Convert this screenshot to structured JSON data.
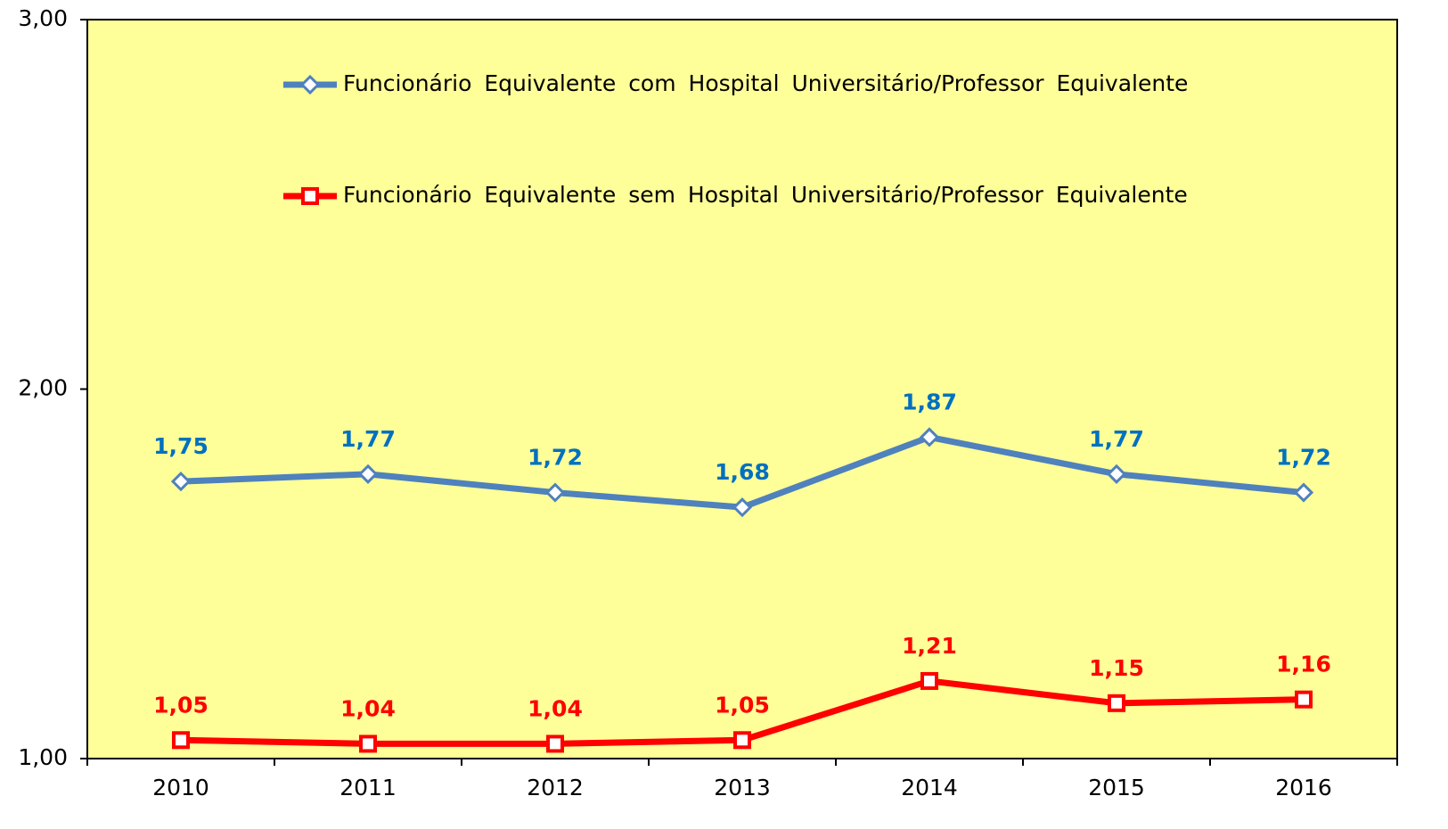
{
  "chart_data": {
    "type": "line",
    "categories": [
      "2010",
      "2011",
      "2012",
      "2013",
      "2014",
      "2015",
      "2016"
    ],
    "series": [
      {
        "name": "Funcionário Equivalente com Hospital Universitário/Professor Equivalente",
        "color": "#4f81bd",
        "label_color": "#0070c0",
        "marker": "diamond",
        "values": [
          1.75,
          1.77,
          1.72,
          1.68,
          1.87,
          1.77,
          1.72
        ],
        "value_labels": [
          "1,75",
          "1,77",
          "1,72",
          "1,68",
          "1,87",
          "1,77",
          "1,72"
        ]
      },
      {
        "name": "Funcionário Equivalente sem Hospital Universitário/Professor Equivalente",
        "color": "#ff0000",
        "label_color": "#ff0000",
        "marker": "square",
        "values": [
          1.05,
          1.04,
          1.04,
          1.05,
          1.21,
          1.15,
          1.16
        ],
        "value_labels": [
          "1,05",
          "1,04",
          "1,04",
          "1,05",
          "1,21",
          "1,15",
          "1,16"
        ]
      }
    ],
    "ylim": [
      1,
      3
    ],
    "yticks": [
      {
        "value": 1,
        "label": "1,00"
      },
      {
        "value": 2,
        "label": "2,00"
      },
      {
        "value": 3,
        "label": "3,00"
      }
    ],
    "plot_background": "#ffff99",
    "grid": false,
    "legend": "top"
  }
}
